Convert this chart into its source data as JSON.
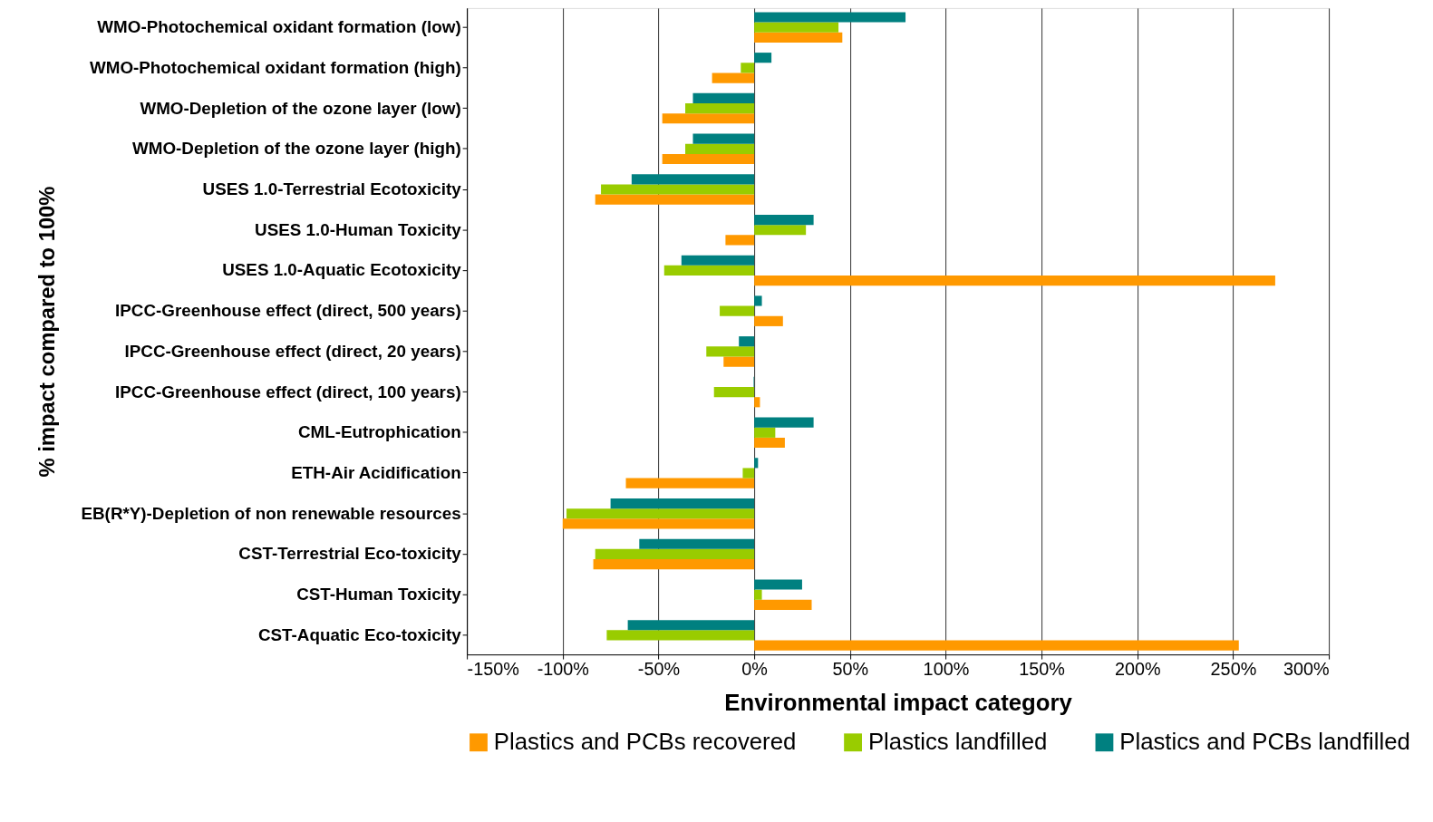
{
  "chart_data": {
    "type": "bar",
    "orientation": "horizontal",
    "xlabel": "Environmental impact category",
    "ylabel": "% impact compared to 100%",
    "categories": [
      "WMO-Photochemical oxidant formation (low)",
      "WMO-Photochemical oxidant formation (high)",
      "WMO-Depletion of the ozone layer (low)",
      "WMO-Depletion of the ozone layer (high)",
      "USES 1.0-Terrestrial Ecotoxicity",
      "USES 1.0-Human Toxicity",
      "USES 1.0-Aquatic Ecotoxicity",
      "IPCC-Greenhouse effect (direct, 500 years)",
      "IPCC-Greenhouse effect (direct, 20 years)",
      "IPCC-Greenhouse effect (direct, 100 years)",
      "CML-Eutrophication",
      "ETH-Air Acidification",
      "EB(R*Y)-Depletion of non renewable resources",
      "CST-Terrestrial Eco-toxicity",
      "CST-Human Toxicity",
      "CST-Aquatic Eco-toxicity"
    ],
    "series": [
      {
        "name": "Plastics and PCBs recovered",
        "color": "#ff9900",
        "values": [
          46,
          -22,
          -48,
          -48,
          -83,
          -15,
          272,
          15,
          -16,
          3,
          16,
          -67,
          -100,
          -84,
          30,
          253
        ]
      },
      {
        "name": "Plastics landfilled",
        "color": "#99cc00",
        "values": [
          44,
          -7,
          -36,
          -36,
          -80,
          27,
          -47,
          -18,
          -25,
          -21,
          11,
          -6,
          -98,
          -83,
          4,
          -77
        ]
      },
      {
        "name": "Plastics and PCBs landfilled",
        "color": "#008080",
        "values": [
          79,
          9,
          -32,
          -32,
          -64,
          31,
          -38,
          4,
          -8,
          -0.3,
          31,
          2,
          -75,
          -60,
          25,
          -66
        ]
      }
    ],
    "xlim": [
      -150,
      300
    ],
    "xticks": [
      {
        "value": -150,
        "label": "-150%"
      },
      {
        "value": -100,
        "label": "-100%"
      },
      {
        "value": -50,
        "label": "-50%"
      },
      {
        "value": 0,
        "label": "0%"
      },
      {
        "value": 50,
        "label": "50%"
      },
      {
        "value": 100,
        "label": "100%"
      },
      {
        "value": 150,
        "label": "150%"
      },
      {
        "value": 200,
        "label": "200%"
      },
      {
        "value": 250,
        "label": "250%"
      },
      {
        "value": 300,
        "label": "300%"
      }
    ],
    "grid": "x",
    "legend": "bottom"
  }
}
